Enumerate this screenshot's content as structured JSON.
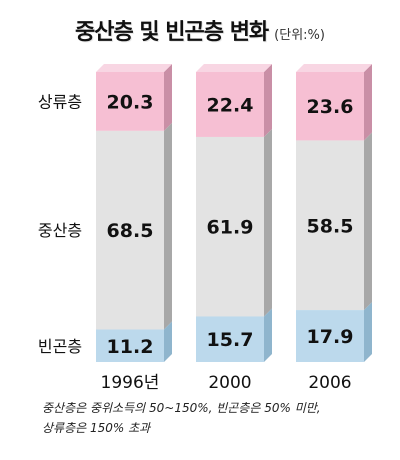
{
  "chart_data": {
    "type": "bar",
    "stacked": true,
    "title": "중산층 및 빈곤층 변화",
    "unit": "(단위:%)",
    "categories": [
      "1996년",
      "2000",
      "2006"
    ],
    "series": [
      {
        "name": "상류층",
        "values": [
          20.3,
          22.4,
          23.6
        ]
      },
      {
        "name": "중산층",
        "values": [
          68.5,
          61.9,
          58.5
        ]
      },
      {
        "name": "빈곤층",
        "values": [
          11.2,
          15.7,
          17.9
        ]
      }
    ],
    "ylim": [
      0,
      100
    ],
    "legend": "left",
    "grid": false
  },
  "colors": {
    "upper": "#f6bfd3",
    "upper_side": "#c98fa6",
    "middle": "#e3e3e3",
    "middle_side": "#a8a8a8",
    "poor": "#bcd9ec",
    "poor_side": "#8fb5cd"
  },
  "footnote": {
    "line1": "중산층은 중위소득의 50~150%, 빈곤층은 50% 미만,",
    "line2": "상류층은 150% 초과"
  }
}
